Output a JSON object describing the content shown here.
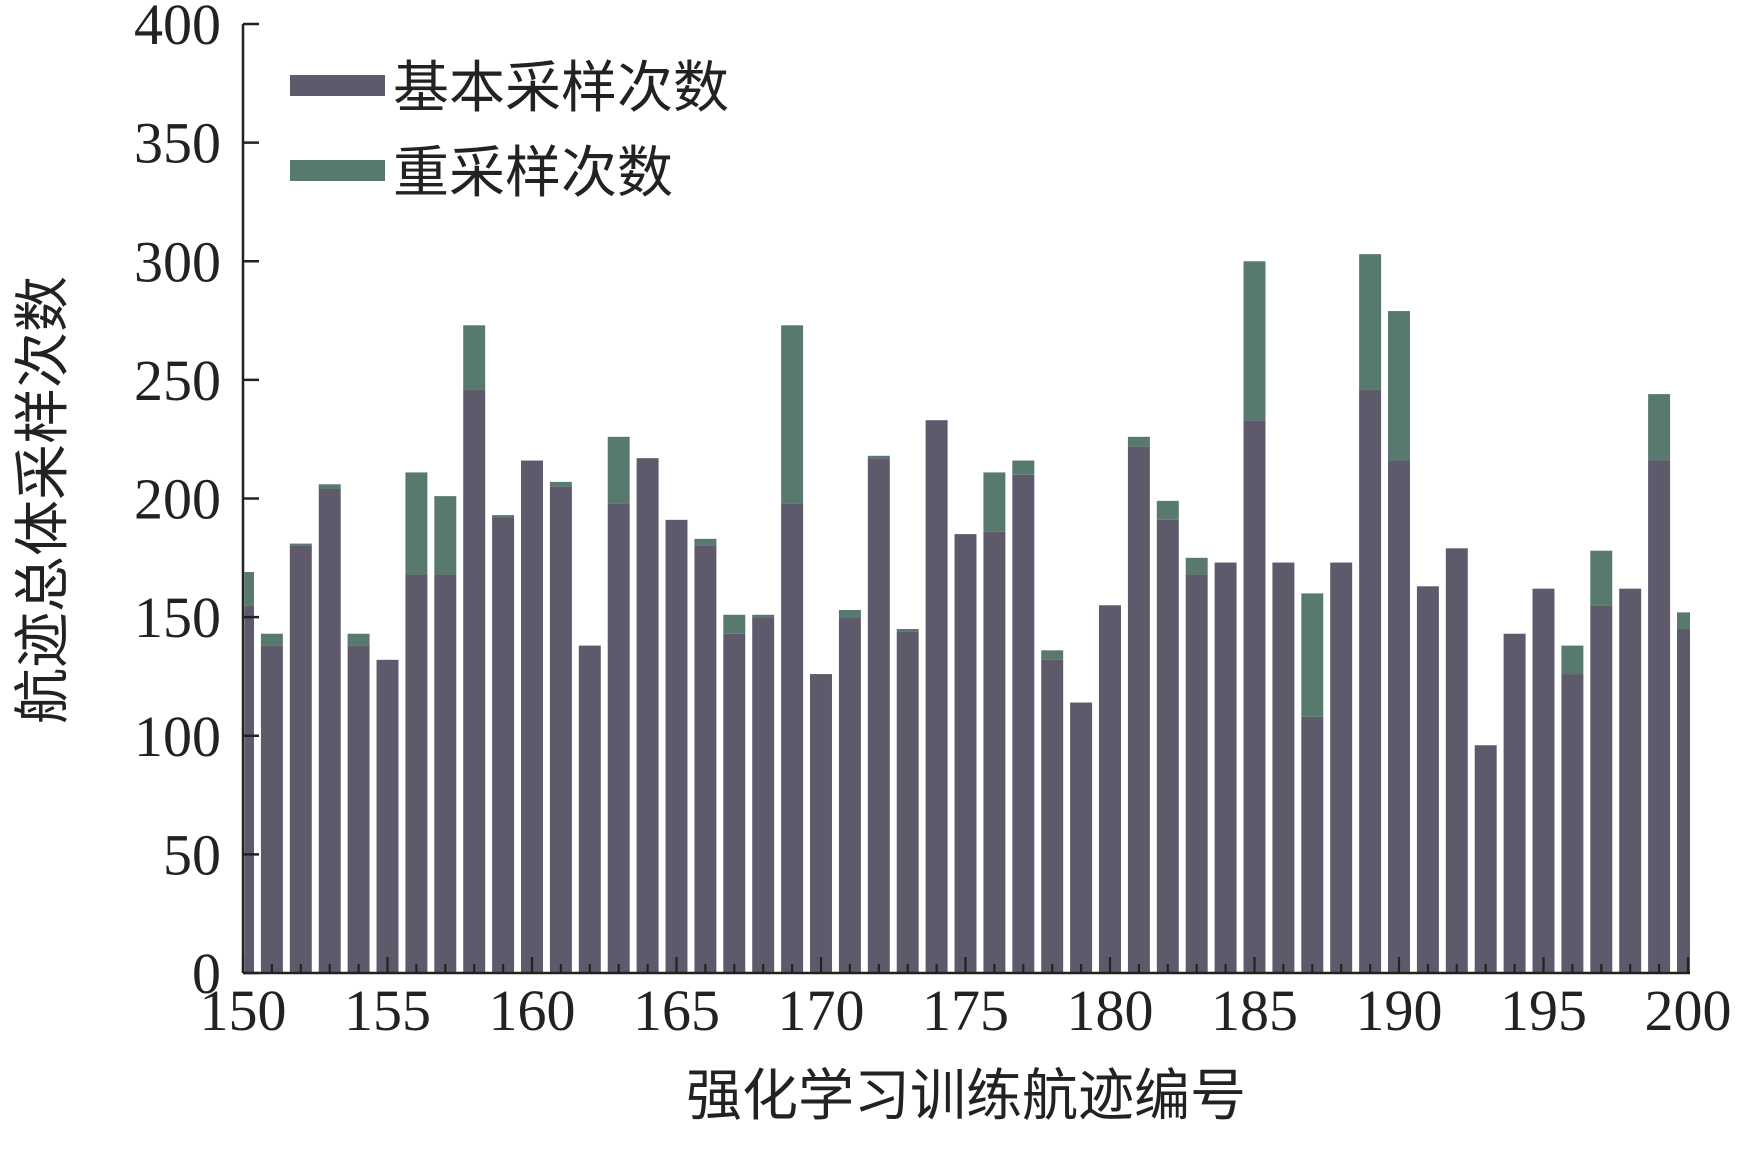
{
  "chart_data": {
    "type": "bar",
    "stacked": true,
    "xlabel": "强化学习训练航迹编号",
    "ylabel": "航迹总体采样次数",
    "xlim": [
      150,
      200
    ],
    "ylim": [
      0,
      400
    ],
    "x_ticks": [
      "150",
      "155",
      "160",
      "165",
      "170",
      "175",
      "180",
      "185",
      "190",
      "195",
      "200"
    ],
    "y_ticks": [
      "0",
      "50",
      "100",
      "150",
      "200",
      "250",
      "300",
      "350",
      "400"
    ],
    "legend_position": "top-left",
    "grid": false,
    "x": [
      150,
      151,
      152,
      153,
      154,
      155,
      156,
      157,
      158,
      159,
      160,
      161,
      162,
      163,
      164,
      165,
      166,
      167,
      168,
      169,
      170,
      171,
      172,
      173,
      174,
      175,
      176,
      177,
      178,
      179,
      180,
      181,
      182,
      183,
      184,
      185,
      186,
      187,
      188,
      189,
      190,
      191,
      192,
      193,
      194,
      195,
      196,
      197,
      198,
      199,
      200
    ],
    "series": [
      {
        "name": "基本采样次数",
        "color": "#5e5a6c",
        "values": [
          155,
          138,
          180,
          204,
          138,
          132,
          168,
          168,
          246,
          192,
          216,
          205,
          138,
          198,
          217,
          191,
          180,
          143,
          150,
          198,
          126,
          150,
          217,
          144,
          233,
          185,
          186,
          210,
          132,
          114,
          155,
          222,
          191,
          168,
          173,
          233,
          173,
          108,
          173,
          246,
          216,
          163,
          179,
          96,
          143,
          162,
          126,
          155,
          162,
          216,
          145
        ]
      },
      {
        "name": "重采样次数",
        "color": "#587a6e",
        "values": [
          14,
          5,
          1,
          2,
          5,
          0,
          43,
          33,
          27,
          1,
          0,
          2,
          0,
          28,
          0,
          0,
          3,
          8,
          1,
          75,
          0,
          3,
          1,
          1,
          0,
          0,
          25,
          6,
          4,
          0,
          0,
          4,
          8,
          7,
          0,
          67,
          0,
          52,
          0,
          57,
          63,
          0,
          0,
          0,
          0,
          0,
          12,
          23,
          0,
          28,
          7
        ]
      }
    ]
  }
}
